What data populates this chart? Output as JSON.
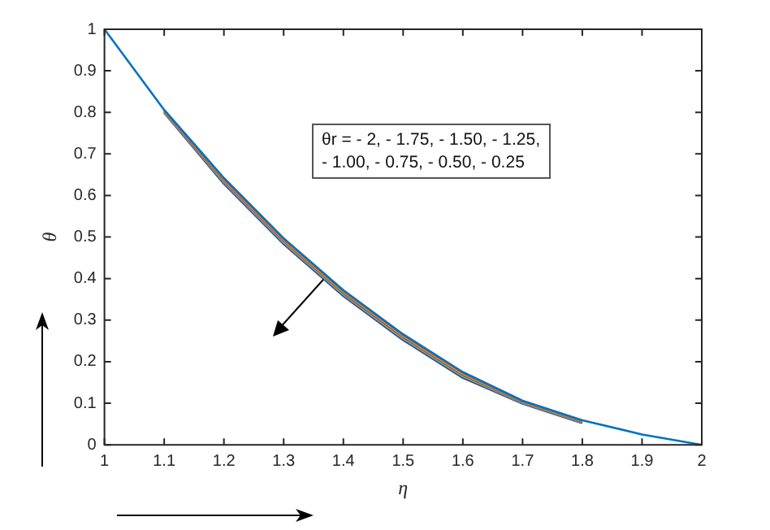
{
  "chart_data": {
    "type": "line",
    "xlabel": "η",
    "ylabel": "θ",
    "x": [
      1,
      1.1,
      1.2,
      1.3,
      1.4,
      1.5,
      1.6,
      1.7,
      1.8,
      1.9,
      2
    ],
    "series": [
      {
        "color": "#0072bd",
        "values": [
          1,
          0.806,
          0.642,
          0.497,
          0.372,
          0.266,
          0.175,
          0.106,
          0.059,
          0.025,
          0
        ]
      },
      {
        "color": "#d95319",
        "values": [
          null,
          0.805,
          0.64,
          0.495,
          0.37,
          0.264,
          0.173,
          0.105,
          0.058,
          null,
          null
        ]
      },
      {
        "color": "#edb120",
        "values": [
          null,
          0.804,
          0.638,
          0.493,
          0.368,
          0.262,
          0.171,
          0.104,
          0.057,
          null,
          null
        ]
      },
      {
        "color": "#7e2f8e",
        "values": [
          null,
          0.803,
          0.636,
          0.491,
          0.366,
          0.26,
          0.169,
          0.103,
          0.056,
          null,
          null
        ]
      },
      {
        "color": "#77ac30",
        "values": [
          null,
          0.802,
          0.634,
          0.489,
          0.364,
          0.258,
          0.167,
          0.102,
          0.055,
          null,
          null
        ]
      },
      {
        "color": "#4dbeee",
        "values": [
          null,
          0.801,
          0.632,
          0.487,
          0.362,
          0.256,
          0.165,
          0.101,
          0.054,
          null,
          null
        ]
      },
      {
        "color": "#a2142f",
        "values": [
          null,
          0.8,
          0.63,
          0.485,
          0.36,
          0.254,
          0.163,
          0.1,
          0.053,
          null,
          null
        ]
      },
      {
        "color": "#0072bd",
        "values": [
          null,
          0.799,
          0.628,
          0.483,
          0.358,
          0.252,
          0.161,
          0.099,
          0.052,
          null,
          null
        ]
      }
    ],
    "xlim": [
      1,
      2
    ],
    "xticks": [
      1,
      1.1,
      1.2,
      1.3,
      1.4,
      1.5,
      1.6,
      1.7,
      1.8,
      1.9,
      2
    ],
    "ylim": [
      0,
      1
    ],
    "yticks": [
      0,
      0.1,
      0.2,
      0.3,
      0.4,
      0.5,
      0.6,
      0.7,
      0.8,
      0.9,
      1
    ],
    "annotations": [
      "θr = - 2, - 1.75, - 1.50, - 1.25,\n- 1.00, - 0.75, - 0.50, - 0.25"
    ],
    "legend": false,
    "marker": "none",
    "line_style": "solid"
  }
}
